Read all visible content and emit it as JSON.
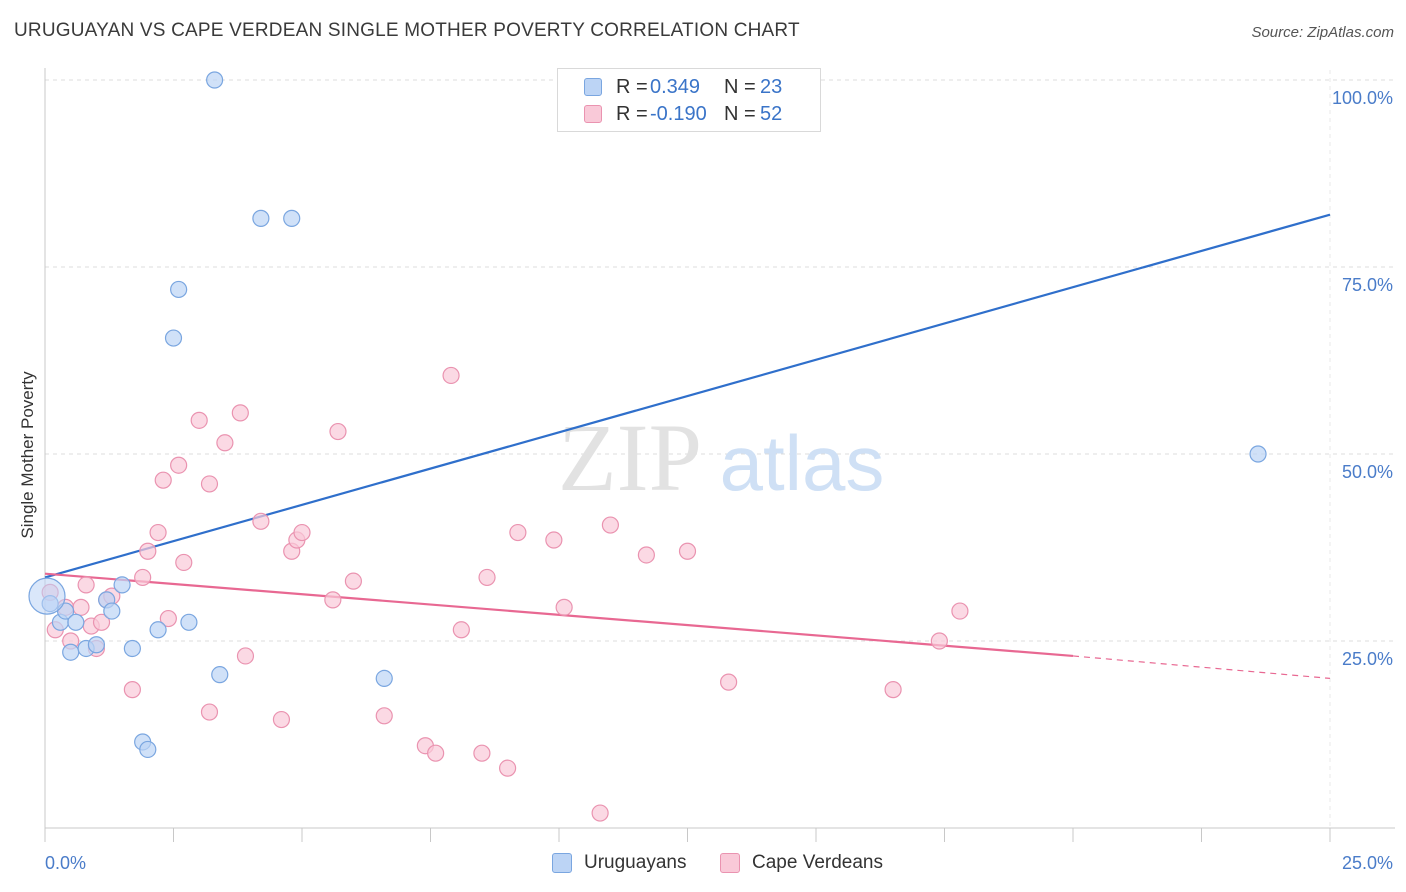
{
  "title": "URUGUAYAN VS CAPE VERDEAN SINGLE MOTHER POVERTY CORRELATION CHART",
  "source": "Source: ZipAtlas.com",
  "watermark": {
    "zip": "ZIP",
    "atlas": "atlas"
  },
  "legend": {
    "rows": [
      {
        "r_label": "R =",
        "r_value": "0.349",
        "n_label": "N =",
        "n_value": "23"
      },
      {
        "r_label": "R =",
        "r_value": "-0.190",
        "n_label": "N =",
        "n_value": "52"
      }
    ]
  },
  "bottom_legend": [
    "Uruguayans",
    "Cape Verdeans"
  ],
  "colors": {
    "uruguayans_fill": "#bcd4f5",
    "uruguayans_stroke": "#7aa6e0",
    "uruguayans_line": "#2f6fcb",
    "capeverdeans_fill": "#f9c9d8",
    "capeverdeans_stroke": "#ea93b0",
    "capeverdeans_line": "#e86892",
    "axis_text": "#4a7cc9"
  },
  "chart_data": {
    "type": "scatter",
    "title": "URUGUAYAN VS CAPE VERDEAN SINGLE MOTHER POVERTY CORRELATION CHART",
    "xlabel": "",
    "ylabel": "Single Mother Poverty",
    "xlim": [
      0,
      25
    ],
    "ylim": [
      0,
      100
    ],
    "x_tick_labels": [
      "0.0%",
      "25.0%"
    ],
    "y_tick_labels": [
      "100.0%",
      "75.0%",
      "50.0%",
      "25.0%"
    ],
    "y_ticks": [
      100,
      75,
      50,
      25
    ],
    "grid": true,
    "series": [
      {
        "name": "Uruguayans",
        "points": [
          [
            0.1,
            30.0
          ],
          [
            0.3,
            27.5
          ],
          [
            0.4,
            29.0
          ],
          [
            0.5,
            23.5
          ],
          [
            0.6,
            27.5
          ],
          [
            0.8,
            24.0
          ],
          [
            1.0,
            24.5
          ],
          [
            1.2,
            30.5
          ],
          [
            1.3,
            29.0
          ],
          [
            1.5,
            32.5
          ],
          [
            1.7,
            24.0
          ],
          [
            1.9,
            11.5
          ],
          [
            2.0,
            10.5
          ],
          [
            2.2,
            26.5
          ],
          [
            2.5,
            65.5
          ],
          [
            2.6,
            72.0
          ],
          [
            2.8,
            27.5
          ],
          [
            3.3,
            100.0
          ],
          [
            3.4,
            20.5
          ],
          [
            4.2,
            81.5
          ],
          [
            4.8,
            81.5
          ],
          [
            6.6,
            20.0
          ],
          [
            23.6,
            50.0
          ]
        ]
      },
      {
        "name": "Cape Verdeans",
        "points": [
          [
            0.1,
            31.5
          ],
          [
            0.2,
            26.5
          ],
          [
            0.4,
            29.5
          ],
          [
            0.5,
            25.0
          ],
          [
            0.7,
            29.5
          ],
          [
            0.8,
            32.5
          ],
          [
            0.9,
            27.0
          ],
          [
            1.0,
            24.0
          ],
          [
            1.1,
            27.5
          ],
          [
            1.2,
            30.5
          ],
          [
            1.3,
            31.0
          ],
          [
            1.7,
            18.5
          ],
          [
            1.9,
            33.5
          ],
          [
            2.0,
            37.0
          ],
          [
            2.2,
            39.5
          ],
          [
            2.3,
            46.5
          ],
          [
            2.4,
            28.0
          ],
          [
            2.6,
            48.5
          ],
          [
            2.7,
            35.5
          ],
          [
            3.0,
            54.5
          ],
          [
            3.2,
            15.5
          ],
          [
            3.2,
            46.0
          ],
          [
            3.5,
            51.5
          ],
          [
            3.8,
            55.5
          ],
          [
            3.9,
            23.0
          ],
          [
            4.2,
            41.0
          ],
          [
            4.6,
            14.5
          ],
          [
            4.8,
            37.0
          ],
          [
            4.9,
            38.5
          ],
          [
            5.0,
            39.5
          ],
          [
            5.6,
            30.5
          ],
          [
            5.7,
            53.0
          ],
          [
            6.0,
            33.0
          ],
          [
            6.6,
            15.0
          ],
          [
            7.4,
            11.0
          ],
          [
            7.6,
            10.0
          ],
          [
            7.9,
            60.5
          ],
          [
            8.1,
            26.5
          ],
          [
            8.5,
            10.0
          ],
          [
            8.6,
            33.5
          ],
          [
            9.0,
            8.0
          ],
          [
            9.2,
            39.5
          ],
          [
            9.9,
            38.5
          ],
          [
            10.1,
            29.5
          ],
          [
            10.8,
            2.0
          ],
          [
            11.0,
            40.5
          ],
          [
            11.7,
            36.5
          ],
          [
            12.5,
            37.0
          ],
          [
            13.3,
            19.5
          ],
          [
            16.5,
            18.5
          ],
          [
            17.4,
            25.0
          ],
          [
            17.8,
            29.0
          ]
        ]
      }
    ],
    "trend_lines": [
      {
        "name": "Uruguayans",
        "x": [
          0,
          25
        ],
        "y": [
          33.5,
          82.0
        ]
      },
      {
        "name": "Cape Verdeans",
        "x": [
          0,
          20
        ],
        "y": [
          34.0,
          23.0
        ],
        "dashed_to": [
          25,
          20.0
        ]
      }
    ]
  }
}
